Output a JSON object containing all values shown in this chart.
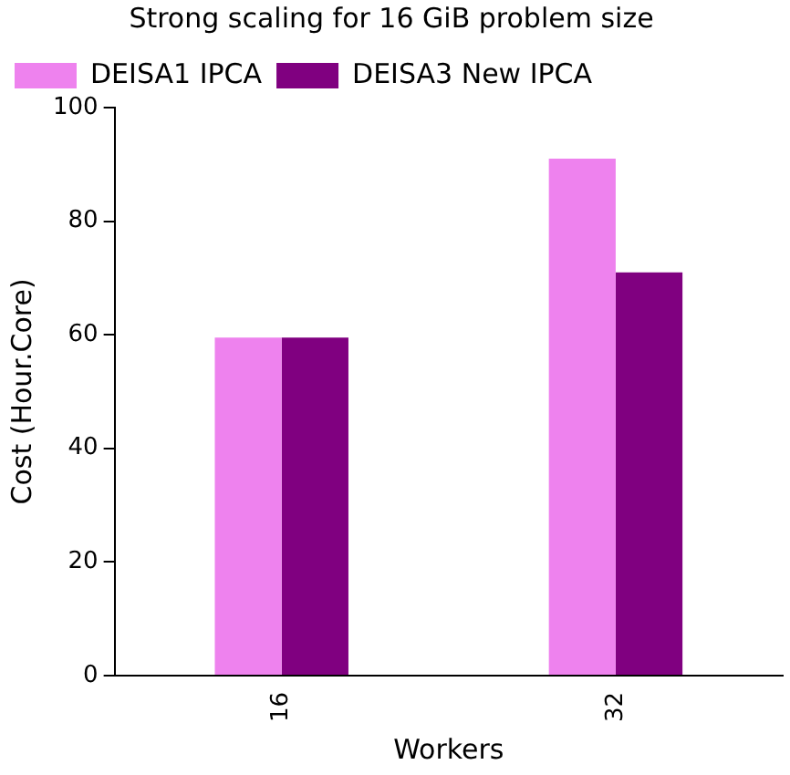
{
  "chart_data": {
    "type": "bar",
    "title": "Strong scaling for 16 GiB problem size",
    "xlabel": "Workers",
    "ylabel": "Cost (Hour.Core)",
    "categories": [
      "16",
      "32"
    ],
    "series": [
      {
        "name": "DEISA1 IPCA",
        "color": "#ee82ee",
        "values": [
          59.5,
          91
        ]
      },
      {
        "name": "DEISA3 New IPCA",
        "color": "#800080",
        "values": [
          59.5,
          71
        ]
      }
    ],
    "ylim": [
      0,
      100
    ],
    "yticks": [
      0,
      20,
      40,
      60,
      80,
      100
    ],
    "grid": false,
    "legend": "top left"
  }
}
